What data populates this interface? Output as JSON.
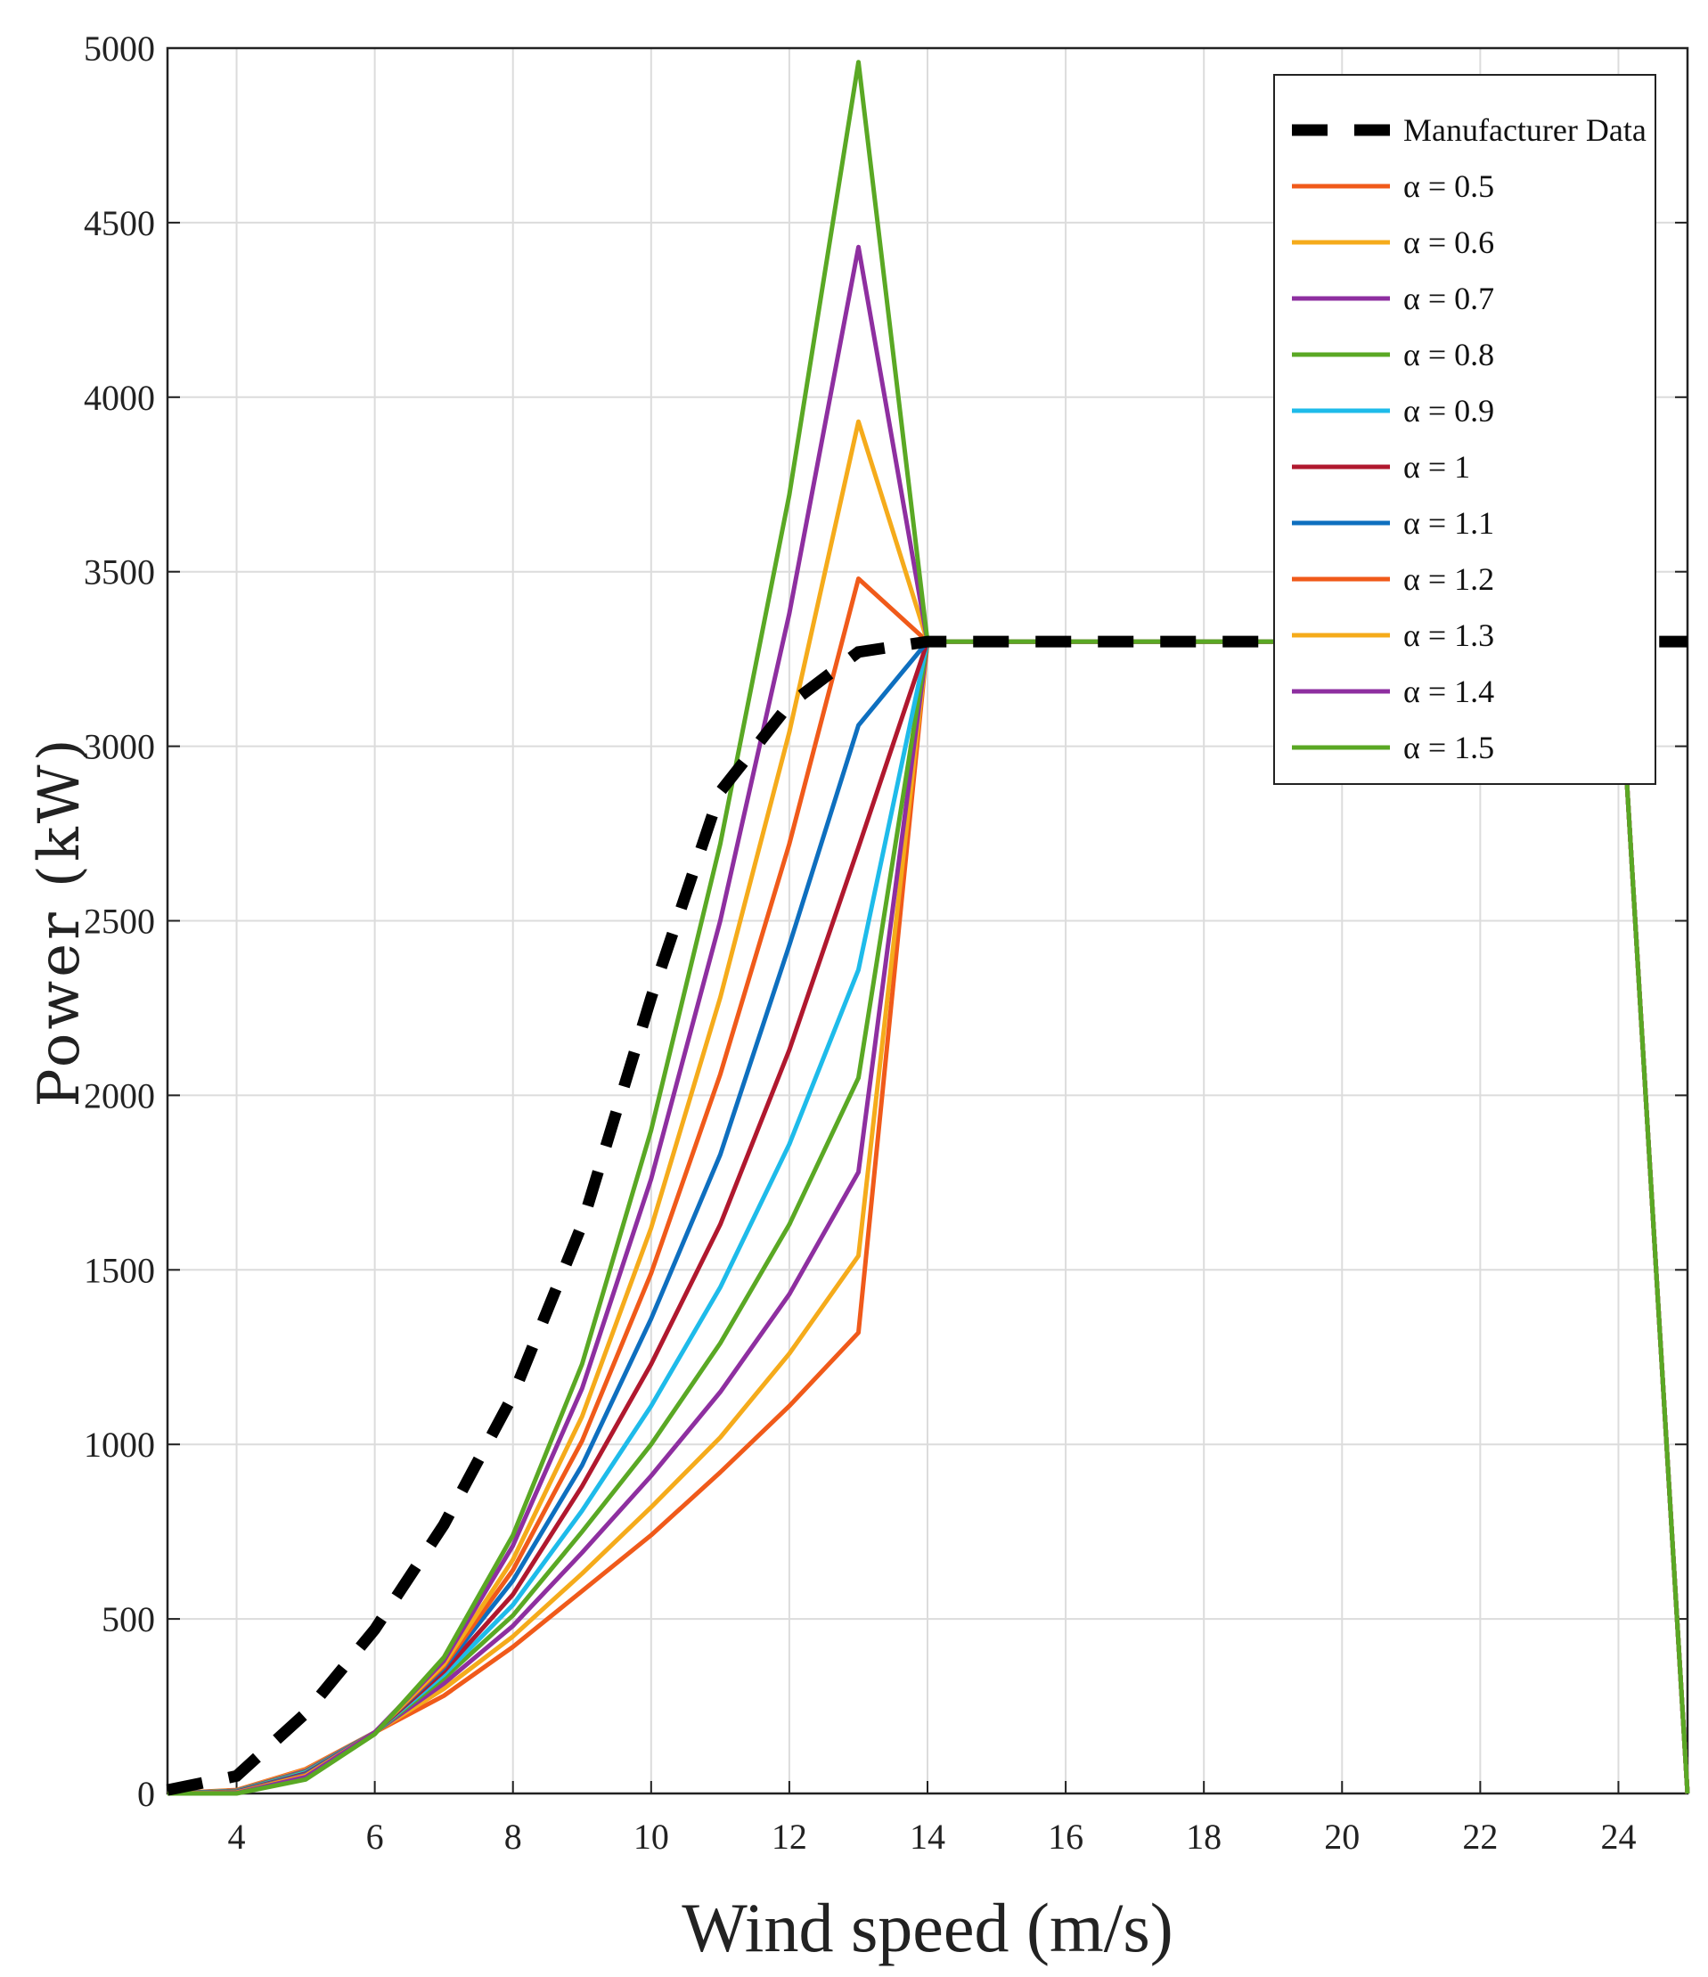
{
  "chart_data": {
    "type": "line",
    "title": "",
    "xlabel": "Wind speed (m/s)",
    "ylabel": "Power (kW)",
    "xlim": [
      3,
      25
    ],
    "ylim": [
      0,
      5000
    ],
    "xticks": [
      4,
      6,
      8,
      10,
      12,
      14,
      16,
      18,
      20,
      22,
      24
    ],
    "yticks": [
      0,
      500,
      1000,
      1500,
      2000,
      2500,
      3000,
      3500,
      4000,
      4500,
      5000
    ],
    "grid": true,
    "legend_position": "top-right",
    "x": [
      3,
      4,
      5,
      6,
      7,
      8,
      9,
      10,
      11,
      12,
      13,
      14,
      15,
      16,
      17,
      18,
      19,
      20,
      21,
      22,
      23,
      24,
      25
    ],
    "series": [
      {
        "name": "Manufacturer Data",
        "color": "#000000",
        "style": "dashed",
        "values": [
          10,
          50,
          230,
          470,
          770,
          1140,
          1630,
          2280,
          2870,
          3120,
          3270,
          3300,
          3300,
          3300,
          3300,
          3300,
          3300,
          3300,
          3300,
          3300,
          3300,
          3300,
          3300
        ]
      },
      {
        "name": "α = 0.5",
        "color": "#f05a1a",
        "style": "solid",
        "values": [
          0,
          10,
          70,
          175,
          280,
          420,
          580,
          740,
          920,
          1110,
          1320,
          3300,
          3300,
          3300,
          3300,
          3300,
          3300,
          3300,
          3300,
          3300,
          3300,
          3300,
          0
        ]
      },
      {
        "name": "α = 0.6",
        "color": "#f5ab1b",
        "style": "solid",
        "values": [
          0,
          9,
          68,
          175,
          300,
          450,
          630,
          820,
          1020,
          1260,
          1540,
          3300,
          3300,
          3300,
          3300,
          3300,
          3300,
          3300,
          3300,
          3300,
          3300,
          3300,
          0
        ]
      },
      {
        "name": "α = 0.7",
        "color": "#8e2fa0",
        "style": "solid",
        "values": [
          0,
          8,
          65,
          175,
          315,
          480,
          690,
          910,
          1150,
          1430,
          1780,
          3300,
          3300,
          3300,
          3300,
          3300,
          3300,
          3300,
          3300,
          3300,
          3300,
          3300,
          0
        ]
      },
      {
        "name": "α = 0.8",
        "color": "#5aa824",
        "style": "solid",
        "values": [
          0,
          7,
          62,
          175,
          330,
          510,
          750,
          1000,
          1290,
          1630,
          2050,
          3300,
          3300,
          3300,
          3300,
          3300,
          3300,
          3300,
          3300,
          3300,
          3300,
          3300,
          0
        ]
      },
      {
        "name": "α = 0.9",
        "color": "#1ebbea",
        "style": "solid",
        "values": [
          0,
          6,
          60,
          175,
          340,
          540,
          810,
          1110,
          1450,
          1860,
          2360,
          3300,
          3300,
          3300,
          3300,
          3300,
          3300,
          3300,
          3300,
          3300,
          3300,
          3300,
          0
        ]
      },
      {
        "name": "α = 1",
        "color": "#b0182e",
        "style": "solid",
        "values": [
          0,
          5,
          57,
          175,
          350,
          570,
          880,
          1230,
          1630,
          2130,
          2710,
          3300,
          3300,
          3300,
          3300,
          3300,
          3300,
          3300,
          3300,
          3300,
          3300,
          3300,
          0
        ]
      },
      {
        "name": "α = 1.1",
        "color": "#0e6fbf",
        "style": "solid",
        "values": [
          0,
          4,
          55,
          175,
          360,
          610,
          940,
          1360,
          1830,
          2430,
          3060,
          3300,
          3300,
          3300,
          3300,
          3300,
          3300,
          3300,
          3300,
          3300,
          3300,
          3300,
          0
        ]
      },
      {
        "name": "α = 1.2",
        "color": "#f05a1a",
        "style": "solid",
        "values": [
          0,
          3,
          52,
          175,
          365,
          640,
          1010,
          1490,
          2060,
          2720,
          3480,
          3300,
          3300,
          3300,
          3300,
          3300,
          3300,
          3300,
          3300,
          3300,
          3300,
          3300,
          0
        ]
      },
      {
        "name": "α = 1.3",
        "color": "#f5ab1b",
        "style": "solid",
        "values": [
          0,
          2,
          50,
          175,
          370,
          670,
          1080,
          1620,
          2280,
          3040,
          3930,
          3300,
          3300,
          3300,
          3300,
          3300,
          3300,
          3300,
          3300,
          3300,
          3300,
          3300,
          0
        ]
      },
      {
        "name": "α = 1.4",
        "color": "#8e2fa0",
        "style": "solid",
        "values": [
          0,
          1,
          47,
          175,
          380,
          710,
          1160,
          1760,
          2500,
          3380,
          4430,
          3300,
          3300,
          3300,
          3300,
          3300,
          3300,
          3300,
          3300,
          3300,
          3300,
          3300,
          0
        ]
      },
      {
        "name": "α = 1.5",
        "color": "#5aa824",
        "style": "solid",
        "values": [
          0,
          0,
          40,
          170,
          390,
          740,
          1230,
          1900,
          2720,
          3720,
          4960,
          3300,
          3300,
          3300,
          3300,
          3300,
          3300,
          3300,
          3300,
          3300,
          3300,
          3300,
          0
        ]
      }
    ]
  }
}
